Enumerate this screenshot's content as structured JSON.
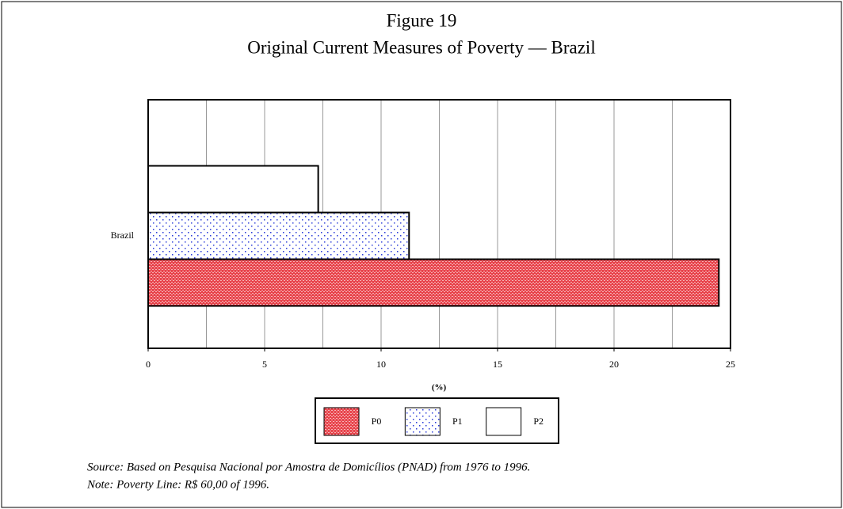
{
  "chart_data": {
    "type": "hbar",
    "title": "Figure 19",
    "subtitle": "Original Current Measures of Poverty — Brazil",
    "x_label": "(%)",
    "categories": [
      "Brazil"
    ],
    "series": [
      {
        "name": "P0",
        "color": "#e8444c",
        "values": [
          24.5
        ]
      },
      {
        "name": "P1",
        "color": "#2a3bd8",
        "values": [
          11.2
        ]
      },
      {
        "name": "P2",
        "color": "#ffffff",
        "values": [
          7.3
        ]
      }
    ],
    "xlim": [
      0,
      25
    ],
    "xticks": [
      0,
      5,
      10,
      15,
      20,
      25
    ],
    "xgrid": [
      2.5,
      5,
      7.5,
      10,
      12.5,
      15,
      17.5,
      20,
      22.5
    ],
    "grid": true,
    "legend": "bottom",
    "notes": [
      "Source: Based on Pesquisa Nacional por Amostra de Domicílios (PNAD) from 1976 to 1996.",
      "Note: Poverty Line: R$ 60,00 of 1996."
    ]
  }
}
